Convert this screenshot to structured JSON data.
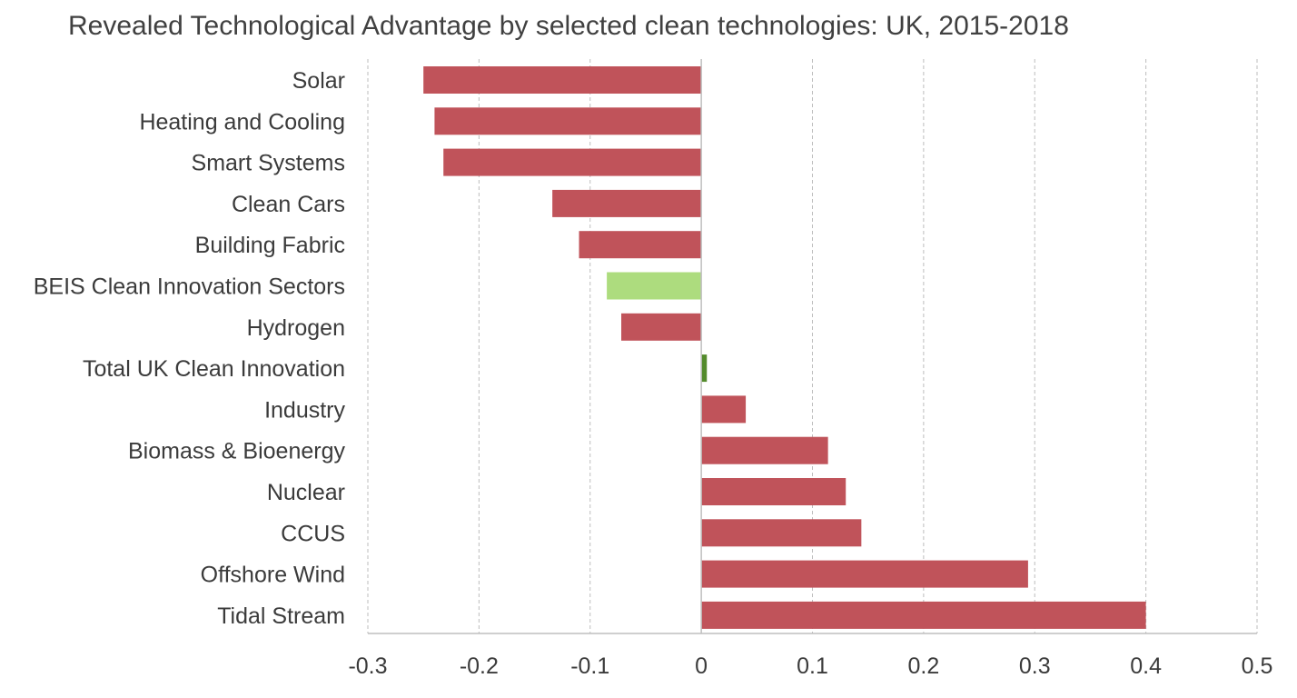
{
  "chart_data": {
    "type": "bar",
    "orientation": "horizontal",
    "title": "Revealed Technological Advantage by selected clean technologies: UK, 2015-2018",
    "xlabel": "",
    "ylabel": "",
    "xlim": [
      -0.3,
      0.5
    ],
    "x_ticks": [
      -0.3,
      -0.2,
      -0.1,
      0,
      0.1,
      0.2,
      0.3,
      0.4,
      0.5
    ],
    "x_tick_labels": [
      "-0.3",
      "-0.2",
      "-0.1",
      "0",
      "0.1",
      "0.2",
      "0.3",
      "0.4",
      "0.5"
    ],
    "grid": "vertical-dashed",
    "legend": "none",
    "categories": [
      "Solar",
      "Heating and Cooling",
      "Smart Systems",
      "Clean Cars",
      "Building Fabric",
      "BEIS Clean Innovation Sectors",
      "Hydrogen",
      "Total UK Clean Innovation",
      "Industry",
      "Biomass & Bioenergy",
      "Nuclear",
      "CCUS",
      "Offshore Wind",
      "Tidal Stream"
    ],
    "values": [
      -0.25,
      -0.24,
      -0.232,
      -0.134,
      -0.11,
      -0.085,
      -0.072,
      0.005,
      0.04,
      0.114,
      0.13,
      0.144,
      0.294,
      0.4
    ],
    "colors": [
      "#c0535a",
      "#c0535a",
      "#c0535a",
      "#c0535a",
      "#c0535a",
      "#addc7e",
      "#c0535a",
      "#548b2c",
      "#c0535a",
      "#c0535a",
      "#c0535a",
      "#c0535a",
      "#c0535a",
      "#c0535a"
    ]
  }
}
